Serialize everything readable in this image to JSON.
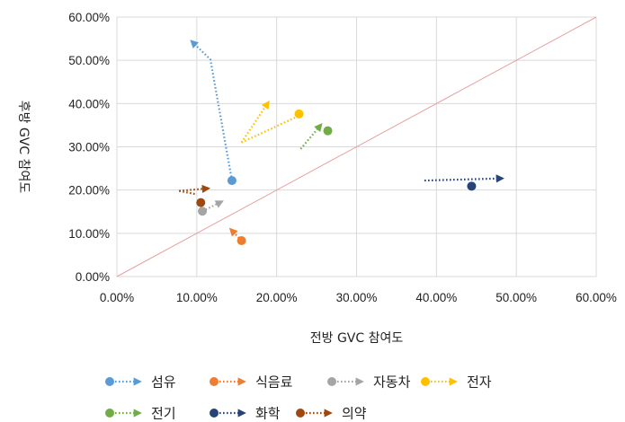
{
  "chart_data": {
    "type": "scatter",
    "title": "",
    "xlabel": "전방 GVC 참여도",
    "ylabel": "후방 GVC 참여도",
    "xlim": [
      0,
      0.6
    ],
    "ylim": [
      0,
      0.6
    ],
    "x_ticks": [
      "0.00%",
      "10.00%",
      "20.00%",
      "30.00%",
      "40.00%",
      "50.00%",
      "60.00%"
    ],
    "y_ticks": [
      "0.00%",
      "10.00%",
      "20.00%",
      "30.00%",
      "40.00%",
      "50.00%",
      "60.00%"
    ],
    "grid": true,
    "reference_line": {
      "from": [
        0,
        0
      ],
      "to": [
        0.6,
        0.6
      ],
      "color": "#e8a0a0"
    },
    "legend_position": "bottom",
    "series": [
      {
        "name": "섬유",
        "color": "#5b9bd5",
        "point": [
          0.144,
          0.222
        ],
        "arrow": [
          [
            0.144,
            0.222
          ],
          [
            0.117,
            0.502
          ],
          [
            0.093,
            0.545
          ]
        ]
      },
      {
        "name": "식음료",
        "color": "#ed7d31",
        "point": [
          0.156,
          0.083
        ],
        "arrow": [
          [
            0.156,
            0.083
          ],
          [
            0.142,
            0.11
          ]
        ]
      },
      {
        "name": "자동차",
        "color": "#a5a5a5",
        "point": [
          0.107,
          0.151
        ],
        "arrow": [
          [
            0.107,
            0.151
          ],
          [
            0.132,
            0.174
          ]
        ]
      },
      {
        "name": "전자",
        "color": "#ffc000",
        "point": [
          0.228,
          0.376
        ],
        "arrow": [
          [
            0.156,
            0.31
          ],
          [
            0.19,
            0.404
          ]
        ],
        "arrow2": [
          [
            0.156,
            0.31
          ],
          [
            0.226,
            0.37
          ]
        ]
      },
      {
        "name": "전기",
        "color": "#70ad47",
        "point": [
          0.264,
          0.337
        ],
        "arrow": [
          [
            0.23,
            0.295
          ],
          [
            0.256,
            0.352
          ]
        ]
      },
      {
        "name": "화학",
        "color": "#264478",
        "point": [
          0.444,
          0.209
        ],
        "arrow": [
          [
            0.385,
            0.222
          ],
          [
            0.483,
            0.227
          ]
        ],
        "mid": [
          0.43,
          0.208
        ]
      },
      {
        "name": "의약",
        "color": "#9e480e",
        "point": [
          0.105,
          0.171
        ],
        "arrow": [
          [
            0.078,
            0.198
          ],
          [
            0.115,
            0.204
          ]
        ],
        "tail": [
          0.078,
          0.198
        ],
        "hook": [
          0.1,
          0.19
        ]
      }
    ]
  }
}
